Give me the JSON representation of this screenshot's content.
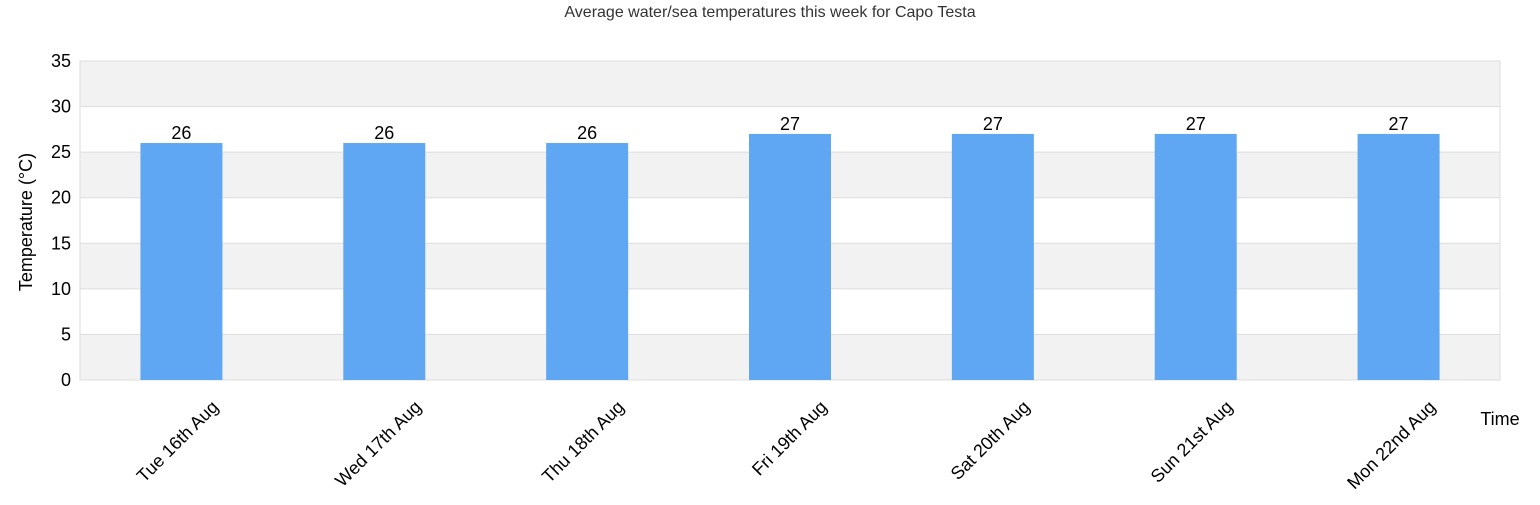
{
  "chart_data": {
    "type": "bar",
    "title": "Average water/sea temperatures this week for Capo Testa",
    "xlabel": "Time",
    "ylabel": "Temperature (°C)",
    "categories": [
      "Tue 16th Aug",
      "Wed 17th Aug",
      "Thu 18th Aug",
      "Fri 19th Aug",
      "Sat 20th Aug",
      "Sun 21st Aug",
      "Mon 22nd Aug"
    ],
    "values": [
      26,
      26,
      26,
      27,
      27,
      27,
      27
    ],
    "data_labels": [
      "26",
      "26",
      "26",
      "27",
      "27",
      "27",
      "27"
    ],
    "ylim": [
      0,
      35
    ],
    "yticks": [
      0,
      5,
      10,
      15,
      20,
      25,
      30,
      35
    ],
    "grid": true,
    "legend": "none",
    "colors": {
      "bar": "#60a7f3",
      "band": "#f2f2f2",
      "gridline": "#dddddd",
      "text": "#000000",
      "title": "#333333"
    }
  }
}
